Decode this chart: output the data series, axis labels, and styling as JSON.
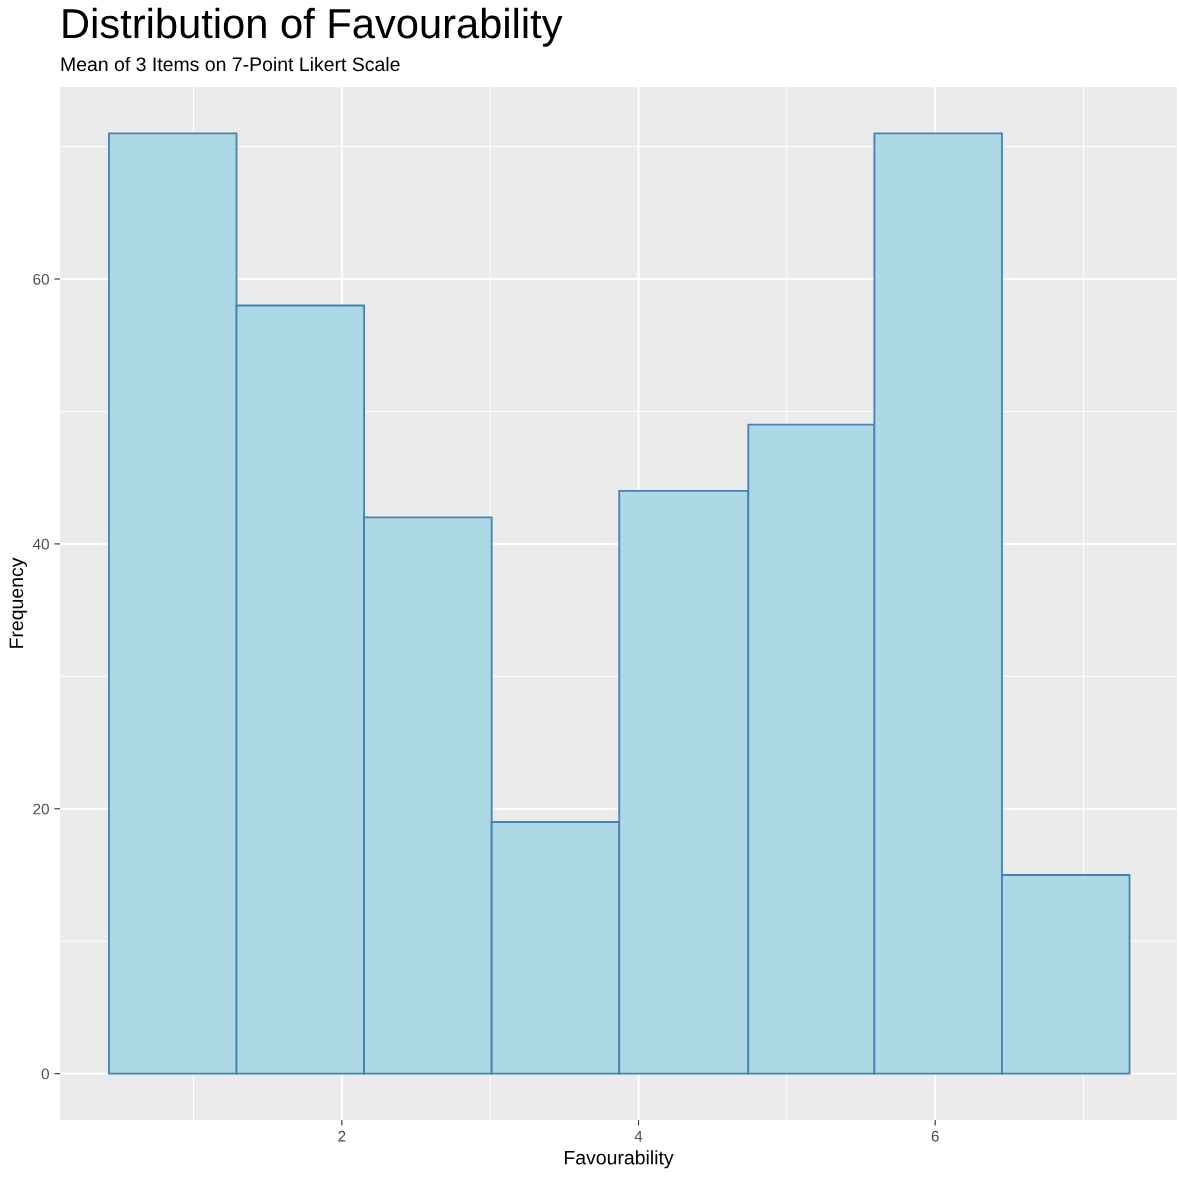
{
  "chart_data": {
    "type": "histogram",
    "title": "Distribution of Favourability",
    "subtitle": "Mean of 3 Items on 7-Point Likert Scale",
    "xlabel": "Favourability",
    "ylabel": "Frequency",
    "bins": [
      0.43,
      1.29,
      2.15,
      3.01,
      3.87,
      4.74,
      5.59,
      6.45,
      7.31
    ],
    "values": [
      71,
      58,
      42,
      19,
      44,
      49,
      71,
      15
    ],
    "color": "#add8e6",
    "xlim": [
      0.1,
      7.63
    ],
    "xticks": [
      2,
      4,
      6
    ],
    "ylim": [
      -3.5,
      74.5
    ],
    "yticks": [
      0,
      20,
      40,
      60
    ],
    "grid": true,
    "legend": false
  }
}
